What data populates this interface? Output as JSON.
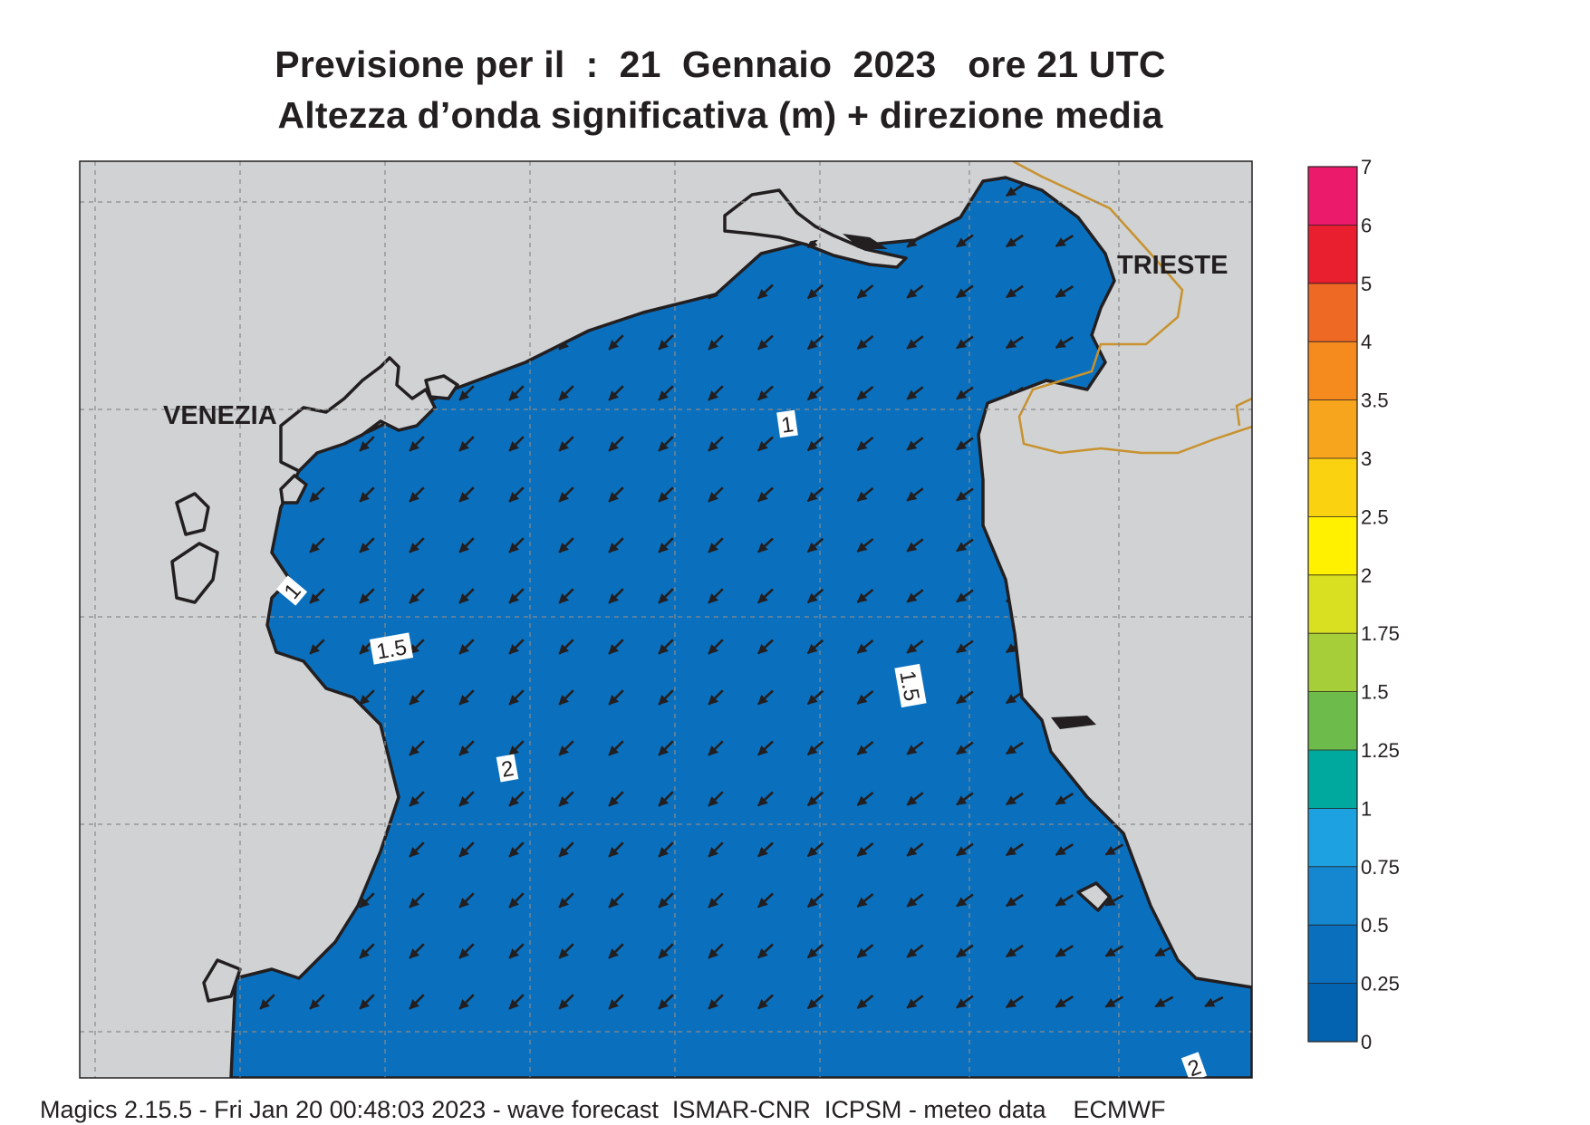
{
  "header": {
    "title_line1": "Previsione per il  :  21  Gennaio  2023   ore 21 UTC",
    "title_line2": "Altezza d’onda significativa (m) + direzione media"
  },
  "map": {
    "cities": [
      {
        "name": "VENEZIA"
      },
      {
        "name": "TRIESTE"
      }
    ],
    "contour_labels": [
      "1",
      "1",
      "1.5",
      "1.5",
      "2",
      "2"
    ],
    "wave_direction": "south-west",
    "colors": {
      "land": "#d0d2d3",
      "coast": "#231f20",
      "border": "#c8922e",
      "grid": "#8a8a8a"
    }
  },
  "colorbar": {
    "labels": [
      "7",
      "6",
      "5",
      "4",
      "3.5",
      "3",
      "2.5",
      "2",
      "1.75",
      "1.5",
      "1.25",
      "1",
      "0.75",
      "0.5",
      "0.25",
      "0"
    ],
    "colors": [
      "#ec1a6b",
      "#e91e2f",
      "#ee6a24",
      "#f58a1f",
      "#f7a51d",
      "#fbd20f",
      "#fff100",
      "#d9e021",
      "#a6ce39",
      "#6cbb4b",
      "#00a99d",
      "#1ea1e0",
      "#1586d0",
      "#0a70be",
      "#0363b1"
    ]
  },
  "footer": {
    "text": "Magics 2.15.5 - Fri Jan 20 00:48:03 2023 - wave forecast  ISMAR-CNR  ICPSM - meteo data    ECMWF"
  }
}
